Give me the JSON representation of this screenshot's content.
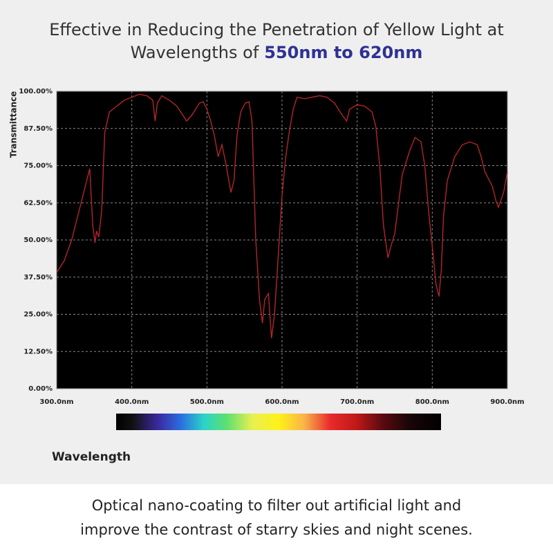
{
  "chart_data": {
    "type": "line",
    "title": "Effective in Reducing the Penetration of Yellow Light at",
    "title_line2": "Wavelengths of",
    "title_highlight": "550nm to 620nm",
    "y_label": "Transmittance",
    "x_label": "Wavelength",
    "color": "#b3262a",
    "grid": true,
    "xlim": [
      300,
      900
    ],
    "ylim": [
      0,
      100
    ],
    "xticks": [
      {
        "value": 300,
        "label": "300.0nm"
      },
      {
        "value": 400,
        "label": "400.0nm"
      },
      {
        "value": 500,
        "label": "500.0nm"
      },
      {
        "value": 600,
        "label": "600.0nm"
      },
      {
        "value": 700,
        "label": "700.0nm"
      },
      {
        "value": 800,
        "label": "800.0nm"
      },
      {
        "value": 900,
        "label": "900.0nm"
      }
    ],
    "yticks": [
      {
        "value": 0,
        "label": "0.00%"
      },
      {
        "value": 12.5,
        "label": "12.50%"
      },
      {
        "value": 25,
        "label": "25.00%"
      },
      {
        "value": 37.5,
        "label": "37.50%"
      },
      {
        "value": 50,
        "label": "50.00%"
      },
      {
        "value": 62.5,
        "label": "62.50%"
      },
      {
        "value": 75,
        "label": "75.00%"
      },
      {
        "value": 87.5,
        "label": "87.50%"
      },
      {
        "value": 100,
        "label": "100.00%"
      }
    ],
    "x": [
      300,
      310,
      320,
      330,
      340,
      344,
      348,
      351,
      353,
      356,
      360,
      364,
      370,
      380,
      390,
      400,
      410,
      420,
      428,
      431,
      434,
      440,
      450,
      460,
      473,
      480,
      490,
      495,
      500,
      505,
      510,
      515,
      520,
      525,
      532,
      536,
      540,
      545,
      551,
      556,
      560,
      565,
      570,
      574,
      577,
      582,
      584,
      586,
      590,
      595,
      600,
      605,
      610,
      615,
      620,
      630,
      640,
      650,
      660,
      670,
      680,
      686,
      690,
      700,
      710,
      720,
      725,
      730,
      735,
      741,
      745,
      750,
      755,
      760,
      770,
      777,
      785,
      790,
      795,
      800,
      805,
      809,
      812,
      815,
      820,
      830,
      840,
      850,
      860,
      865,
      870,
      880,
      885,
      888,
      895,
      900
    ],
    "values": [
      39,
      43,
      50,
      60,
      70,
      74,
      55,
      49,
      53,
      51,
      60,
      86,
      93,
      95,
      97,
      98,
      99,
      98.5,
      97,
      90,
      96,
      98.5,
      97,
      95,
      90,
      92,
      96,
      96.5,
      94,
      90,
      85,
      78,
      82,
      76,
      66,
      70,
      85,
      93,
      96,
      96.5,
      90,
      50,
      30,
      22,
      30,
      32,
      24,
      17,
      25,
      45,
      65,
      78,
      87,
      94,
      98,
      97.5,
      98,
      98.5,
      98,
      96,
      92,
      90,
      94,
      95.5,
      95,
      93,
      88,
      75,
      55,
      44,
      48,
      52,
      62,
      72,
      80,
      84.5,
      83,
      75,
      60,
      48,
      35,
      31,
      40,
      58,
      70,
      78,
      82,
      83,
      82,
      78,
      73,
      68,
      63,
      61,
      66,
      73
    ]
  },
  "footer": {
    "lines": [
      "Optical nano-coating to filter out artificial light and",
      "improve the contrast of starry skies and night scenes."
    ]
  }
}
